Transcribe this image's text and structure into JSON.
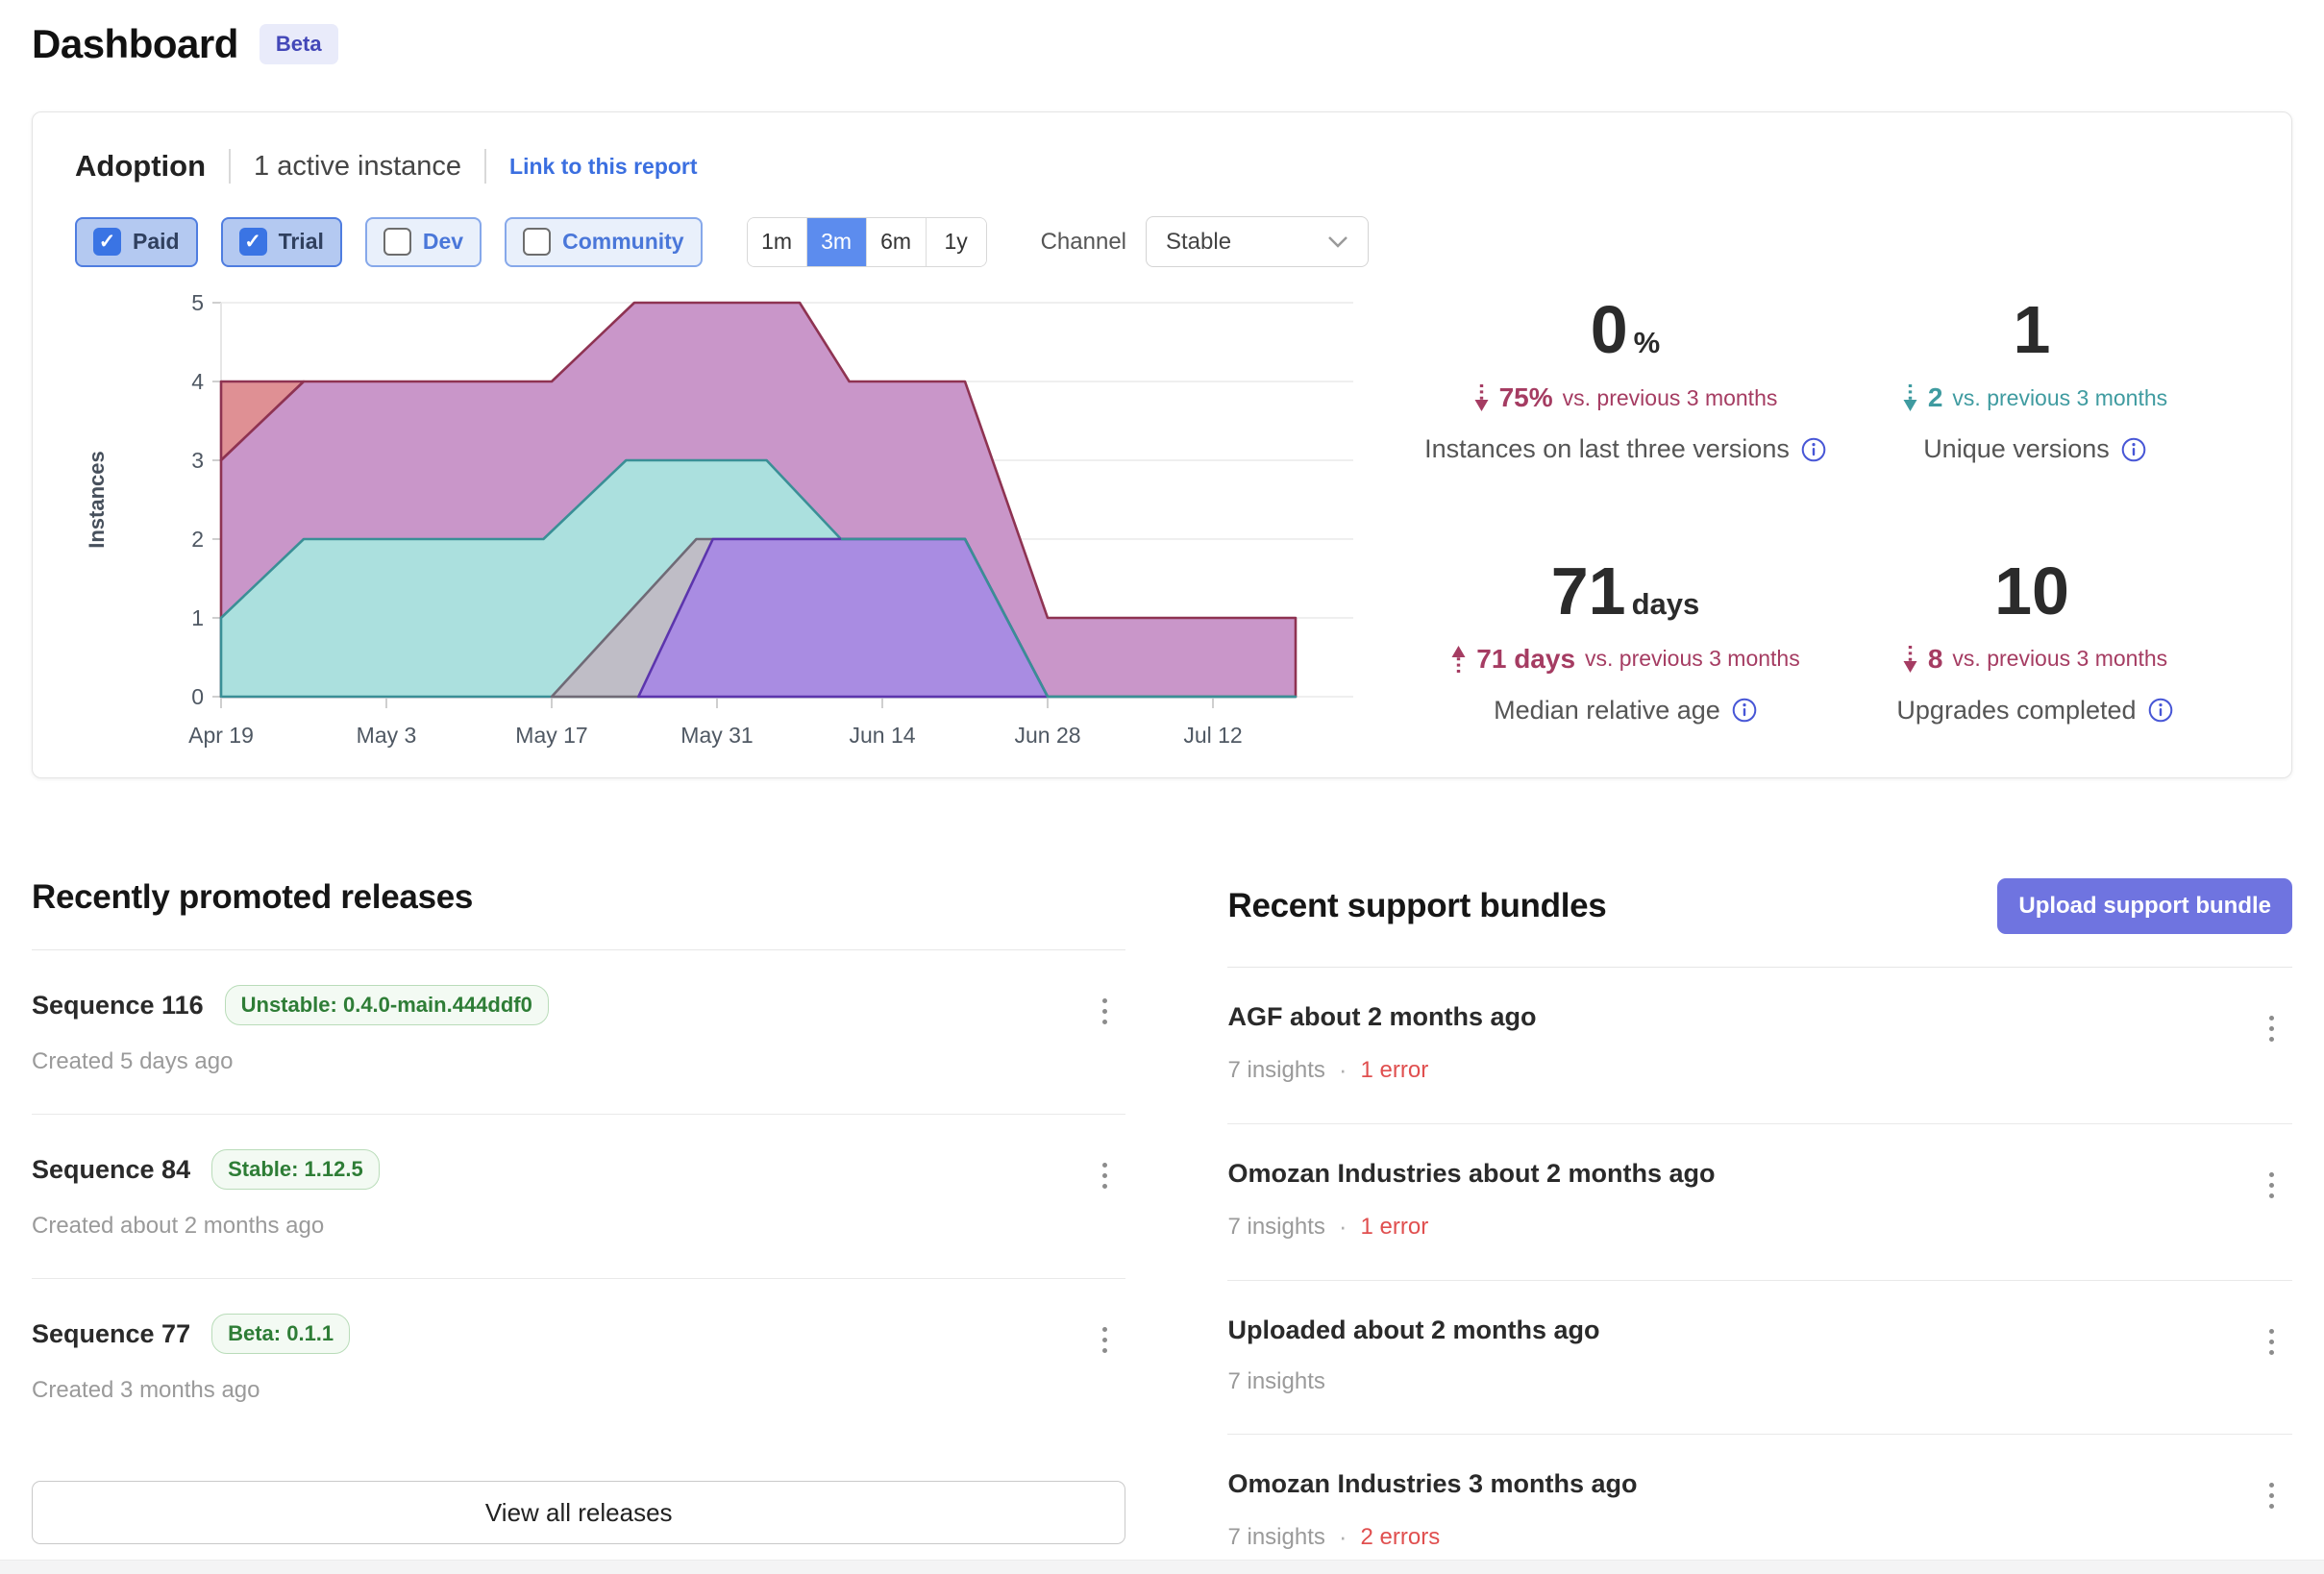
{
  "page": {
    "title": "Dashboard",
    "beta": "Beta"
  },
  "adoption": {
    "title": "Adoption",
    "subtitle": "1 active instance",
    "link": "Link to this report",
    "filters": [
      {
        "label": "Paid",
        "checked": true
      },
      {
        "label": "Trial",
        "checked": true
      },
      {
        "label": "Dev",
        "checked": false
      },
      {
        "label": "Community",
        "checked": false
      }
    ],
    "ranges": [
      "1m",
      "3m",
      "6m",
      "1y"
    ],
    "selected_range": "3m",
    "channel_label": "Channel",
    "channel_value": "Stable",
    "stats": [
      {
        "value": "0",
        "suffix": "%",
        "delta_dir": "down",
        "delta_tone": "red",
        "delta_value": "75%",
        "delta_text": "vs. previous 3 months",
        "label": "Instances on last three versions"
      },
      {
        "value": "1",
        "suffix": "",
        "delta_dir": "down",
        "delta_tone": "teal",
        "delta_value": "2",
        "delta_text": "vs. previous 3 months",
        "label": "Unique versions"
      },
      {
        "value": "71",
        "suffix": "days",
        "delta_dir": "up",
        "delta_tone": "red",
        "delta_value": "71 days",
        "delta_text": "vs. previous 3 months",
        "label": "Median relative age"
      },
      {
        "value": "10",
        "suffix": "",
        "delta_dir": "down",
        "delta_tone": "red",
        "delta_value": "8",
        "delta_text": "vs. previous 3 months",
        "label": "Upgrades completed"
      }
    ]
  },
  "chart_data": {
    "type": "area",
    "ylabel": "Instances",
    "ylim": [
      0,
      5
    ],
    "y_ticks": [
      0,
      1,
      2,
      3,
      4,
      5
    ],
    "grid": true,
    "legend": "none",
    "x_unit": "weeks since Apr 19",
    "x_ticks": [
      {
        "w": 0,
        "label": "Apr 19"
      },
      {
        "w": 2,
        "label": "May 3"
      },
      {
        "w": 4,
        "label": "May 17"
      },
      {
        "w": 6,
        "label": "May 31"
      },
      {
        "w": 8,
        "label": "Jun 14"
      },
      {
        "w": 10,
        "label": "Jun 28"
      },
      {
        "w": 12,
        "label": "Jul 12"
      }
    ],
    "series": [
      {
        "name": "version-red",
        "fill": "#df9094",
        "stroke": "#8e3352",
        "baseline": false,
        "points": [
          [
            0,
            4
          ],
          [
            1,
            4
          ],
          [
            0,
            3
          ]
        ]
      },
      {
        "name": "version-mauve",
        "fill": "#c996c9",
        "stroke": "#8e3352",
        "baseline": true,
        "points": [
          [
            0,
            3
          ],
          [
            1,
            4
          ],
          [
            4,
            4
          ],
          [
            5,
            5
          ],
          [
            7,
            5
          ],
          [
            7.6,
            4
          ],
          [
            9,
            4
          ],
          [
            10,
            1
          ],
          [
            13,
            1
          ]
        ]
      },
      {
        "name": "version-teal",
        "fill": "#abe0de",
        "stroke": "#3a8f96",
        "baseline": true,
        "points": [
          [
            0,
            1
          ],
          [
            1,
            2
          ],
          [
            3.9,
            2
          ],
          [
            4.9,
            3
          ],
          [
            6.6,
            3
          ],
          [
            7.5,
            2
          ],
          [
            9,
            2
          ],
          [
            10,
            0
          ],
          [
            13,
            0
          ]
        ]
      },
      {
        "name": "version-gray",
        "fill": "#bfbdc6",
        "stroke": "#6f6a76",
        "baseline": true,
        "points": [
          [
            4,
            0
          ],
          [
            5.75,
            2
          ],
          [
            9,
            2
          ],
          [
            10,
            0
          ]
        ]
      },
      {
        "name": "version-purple",
        "fill": "#a98ce2",
        "stroke": "#5c35ad",
        "baseline": true,
        "points": [
          [
            5.05,
            0
          ],
          [
            5.95,
            2
          ],
          [
            9,
            2
          ],
          [
            10,
            0
          ]
        ]
      }
    ],
    "overlay_line": {
      "stroke": "#3a8f96",
      "points": [
        [
          7.5,
          2
        ],
        [
          9,
          2
        ],
        [
          10,
          0
        ],
        [
          13,
          0
        ]
      ]
    }
  },
  "releases": {
    "heading": "Recently promoted releases",
    "items": [
      {
        "title": "Sequence 116",
        "tag": "Unstable: 0.4.0-main.444ddf0",
        "meta": "Created 5 days ago"
      },
      {
        "title": "Sequence 84",
        "tag": "Stable: 1.12.5",
        "meta": "Created about 2 months ago"
      },
      {
        "title": "Sequence 77",
        "tag": "Beta: 0.1.1",
        "meta": "Created 3 months ago"
      }
    ],
    "view_all": "View all releases"
  },
  "bundles": {
    "heading": "Recent support bundles",
    "upload": "Upload support bundle",
    "items": [
      {
        "title": "AGF about 2 months ago",
        "insights": "7 insights",
        "errors": "1 error"
      },
      {
        "title": "Omozan Industries about 2 months ago",
        "insights": "7 insights",
        "errors": "1 error"
      },
      {
        "title": "Uploaded about 2 months ago",
        "insights": "7 insights",
        "errors": ""
      },
      {
        "title": "Omozan Industries 3 months ago",
        "insights": "7 insights",
        "errors": "2 errors"
      }
    ]
  },
  "colors": {
    "accent_blue": "#5c8cee",
    "link_blue": "#3b6fe0",
    "brand_indigo": "#6f74e0",
    "delta_red": "#a53c62",
    "delta_teal": "#3f9ba0",
    "error_red": "#e04f4f",
    "tag_green": "#2e7d36",
    "info_blue": "#4756d6"
  }
}
